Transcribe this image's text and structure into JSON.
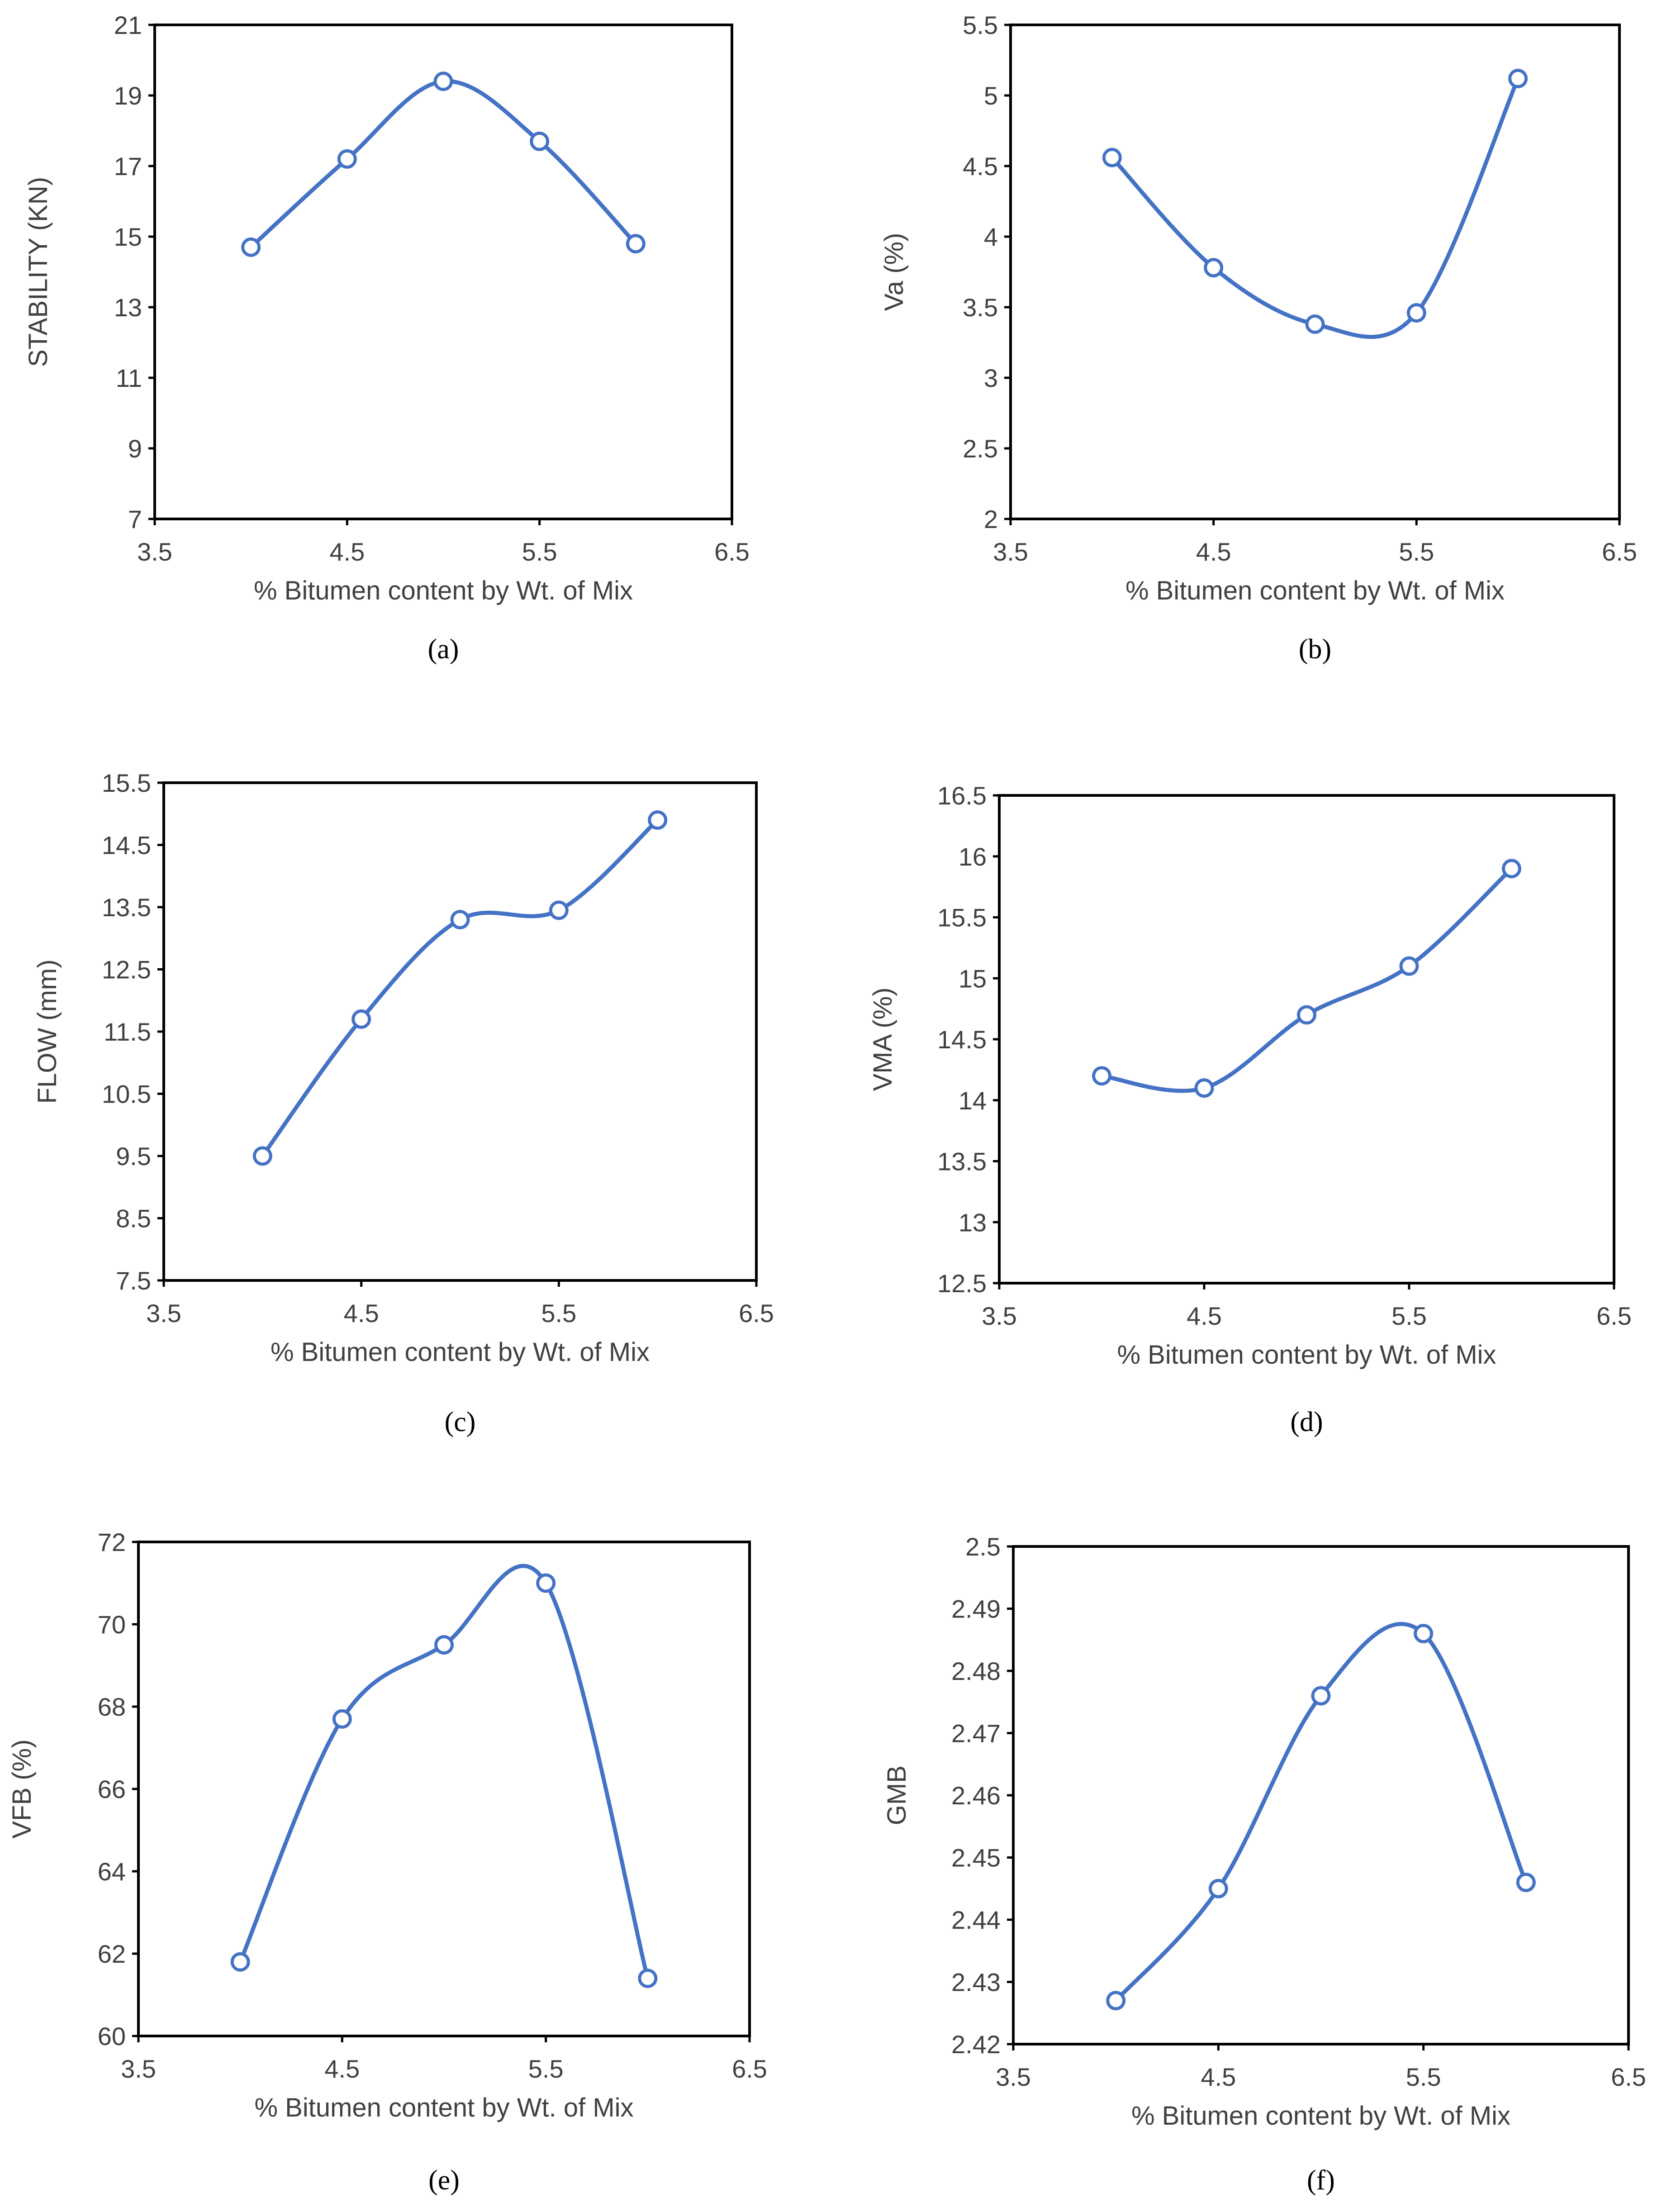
{
  "figure": {
    "series_color": "#4472c4"
  },
  "chart_data": [
    {
      "type": "line",
      "panel": "a",
      "caption": "(a)",
      "xlabel": "% Bitumen content by Wt. of Mix",
      "ylabel": "STABILITY (KN)",
      "x": [
        4,
        4.5,
        5,
        5.5,
        6
      ],
      "values": [
        14.7,
        17.2,
        19.4,
        17.7,
        14.8
      ],
      "xlim": [
        3.5,
        6.5
      ],
      "ylim": [
        7,
        21
      ],
      "xticks": [
        "3.5",
        "4.5",
        "5.5",
        "6.5"
      ],
      "yticks": [
        "7",
        "9",
        "11",
        "13",
        "15",
        "17",
        "19",
        "21"
      ],
      "smooth": true,
      "grid": true
    },
    {
      "type": "line",
      "panel": "b",
      "caption": "(b)",
      "xlabel": "% Bitumen content by Wt. of Mix",
      "ylabel": "Va (%)",
      "x": [
        4,
        4.5,
        5,
        5.5,
        6
      ],
      "values": [
        4.56,
        3.78,
        3.38,
        3.46,
        5.12
      ],
      "xlim": [
        3.5,
        6.5
      ],
      "ylim": [
        2,
        5.5
      ],
      "xticks": [
        "3.5",
        "4.5",
        "5.5",
        "6.5"
      ],
      "yticks": [
        "2",
        "2.5",
        "3",
        "3.5",
        "4",
        "4.5",
        "5",
        "5.5"
      ],
      "smooth": true,
      "grid": true
    },
    {
      "type": "line",
      "panel": "c",
      "caption": "(c)",
      "xlabel": "% Bitumen content by Wt. of Mix",
      "ylabel": "FLOW (mm)",
      "x": [
        4,
        4.5,
        5,
        5.5,
        6
      ],
      "values": [
        9.5,
        11.7,
        13.3,
        13.45,
        14.9
      ],
      "xlim": [
        3.5,
        6.5
      ],
      "ylim": [
        7.5,
        15.5
      ],
      "xticks": [
        "3.5",
        "4.5",
        "5.5",
        "6.5"
      ],
      "yticks": [
        "7.5",
        "8.5",
        "9.5",
        "10.5",
        "11.5",
        "12.5",
        "13.5",
        "14.5",
        "15.5"
      ],
      "smooth": true,
      "grid": true
    },
    {
      "type": "line",
      "panel": "d",
      "caption": "(d)",
      "xlabel": "% Bitumen content by Wt. of Mix",
      "ylabel": "VMA (%)",
      "x": [
        4,
        4.5,
        5,
        5.5,
        6
      ],
      "values": [
        14.2,
        14.1,
        14.7,
        15.1,
        15.9
      ],
      "xlim": [
        3.5,
        6.5
      ],
      "ylim": [
        12.5,
        16.5
      ],
      "xticks": [
        "3.5",
        "4.5",
        "5.5",
        "6.5"
      ],
      "yticks": [
        "12.5",
        "13",
        "13.5",
        "14",
        "14.5",
        "15",
        "15.5",
        "16",
        "16.5"
      ],
      "smooth": true,
      "grid": true
    },
    {
      "type": "line",
      "panel": "e",
      "caption": "(e)",
      "xlabel": "% Bitumen content by Wt. of Mix",
      "ylabel": "VFB (%)",
      "x": [
        4,
        4.5,
        5,
        5.5,
        6
      ],
      "values": [
        61.8,
        67.7,
        69.5,
        71,
        61.4
      ],
      "xlim": [
        3.5,
        6.5
      ],
      "ylim": [
        60,
        72
      ],
      "xticks": [
        "3.5",
        "4.5",
        "5.5",
        "6.5"
      ],
      "yticks": [
        "60",
        "62",
        "64",
        "66",
        "68",
        "70",
        "72"
      ],
      "smooth": true,
      "grid": true
    },
    {
      "type": "line",
      "panel": "f",
      "caption": "(f)",
      "xlabel": "% Bitumen content by Wt. of Mix",
      "ylabel": "GMB",
      "x": [
        4,
        4.5,
        5,
        5.5,
        6
      ],
      "values": [
        2.427,
        2.445,
        2.476,
        2.486,
        2.446
      ],
      "xlim": [
        3.5,
        6.5
      ],
      "ylim": [
        2.42,
        2.5
      ],
      "xticks": [
        "3.5",
        "4.5",
        "5.5",
        "6.5"
      ],
      "yticks": [
        "2.42",
        "2.43",
        "2.44",
        "2.45",
        "2.46",
        "2.47",
        "2.48",
        "2.49",
        "2.5"
      ],
      "smooth": true,
      "grid": true
    }
  ]
}
